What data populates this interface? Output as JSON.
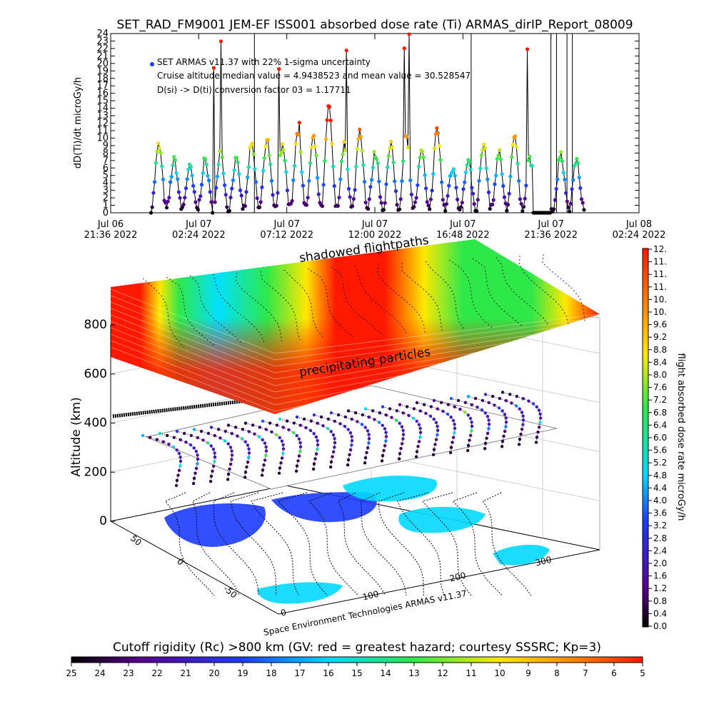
{
  "figure_title": "SET_RAD_FM9001  JEM-EF ISS001 absorbed dose rate (Ti) ARMAS_dirIP_Report_08009",
  "chart_data": [
    {
      "type": "scatter",
      "title": "SET_RAD_FM9001  JEM-EF ISS001 absorbed dose rate (Ti) ARMAS_dirIP_Report_08009",
      "ylabel": "dD(Ti)/dt microGy/h",
      "ylim": [
        0,
        24
      ],
      "yticks": [
        "0",
        "1",
        "2",
        "3",
        "4",
        "5",
        "6",
        "7",
        "8",
        "9",
        "10",
        "11",
        "12",
        "13",
        "14",
        "15",
        "16",
        "17",
        "18",
        "19",
        "20",
        "21",
        "22",
        "23",
        "24"
      ],
      "xlim_hours": [
        0,
        28.8
      ],
      "xticks": [
        {
          "line1": "Jul 06",
          "line2": "21:36 2022",
          "hours": 0
        },
        {
          "line1": "Jul 07",
          "line2": "02:24 2022",
          "hours": 4.8
        },
        {
          "line1": "Jul 07",
          "line2": "07:12 2022",
          "hours": 9.6
        },
        {
          "line1": "Jul 07",
          "line2": "12:00 2022",
          "hours": 14.4
        },
        {
          "line1": "Jul 07",
          "line2": "16:48 2022",
          "hours": 19.2
        },
        {
          "line1": "Jul 07",
          "line2": "21:36 2022",
          "hours": 24.0
        },
        {
          "line1": "Jul 08",
          "line2": "02:24 2022",
          "hours": 28.8
        }
      ],
      "annotations": [
        "SET ARMAS v11.37 with 22% 1-sigma uncertainty",
        "Cruise altitude median value = 4.9438523 and mean value = 30.528547",
        "D(si) -> D(ti) conversion factor 03 = 1.17711"
      ],
      "data_hours_range": [
        2.2,
        25.8
      ],
      "typical_orbit_peaks": [
        9,
        7,
        6,
        7,
        8,
        7,
        9,
        10,
        9,
        11,
        10,
        14,
        9,
        11,
        8,
        9,
        10,
        8,
        11,
        6,
        7,
        9,
        8,
        10,
        7,
        5,
        8,
        7
      ],
      "max_value": 24,
      "series": []
    },
    {
      "type": "scatter3d",
      "zlabel": "Altitude (km)",
      "zticks": [
        "0",
        "200",
        "400",
        "600",
        "800"
      ],
      "xticks": [
        "0",
        "100",
        "200",
        "300"
      ],
      "yticks": [
        "-50",
        "0",
        "50"
      ],
      "plane_labels": [
        "shadowed flightpaths",
        "precipitating particles"
      ],
      "credit": "Space Environment Technologies ARMAS v11.37",
      "colorbar": {
        "label": "flight absorbed dose rate microGy/h",
        "ticks": [
          "0.0",
          "0.4",
          "0.8",
          "1.2",
          "1.6",
          "2.0",
          "2.4",
          "2.8",
          "3.2",
          "3.6",
          "4.0",
          "4.4",
          "4.8",
          "5.2",
          "5.6",
          "6.0",
          "6.4",
          "6.8",
          "7.2",
          "7.6",
          "8.0",
          "8.4",
          "8.8",
          "9.2",
          "9.6",
          "10.",
          "10.",
          "11.",
          "11.",
          "11.",
          "12."
        ]
      }
    },
    {
      "type": "colorbar",
      "title": "Cutoff rigidity (Rc) >800 km (GV: red = greatest hazard; courtesy SSSRC; Kp=3)",
      "ticks": [
        "25",
        "24",
        "23",
        "22",
        "21",
        "20",
        "19",
        "18",
        "17",
        "16",
        "15",
        "14",
        "13",
        "12",
        "11",
        "10",
        "9",
        "8",
        "7",
        "6",
        "5"
      ]
    }
  ],
  "palette": {
    "black": "#000000",
    "purple": "#5a008c",
    "blue": "#1c3cff",
    "cyan": "#00d8ff",
    "green": "#2ee84a",
    "yellow": "#ffe800",
    "orange": "#ff8c00",
    "red": "#ff1800"
  }
}
